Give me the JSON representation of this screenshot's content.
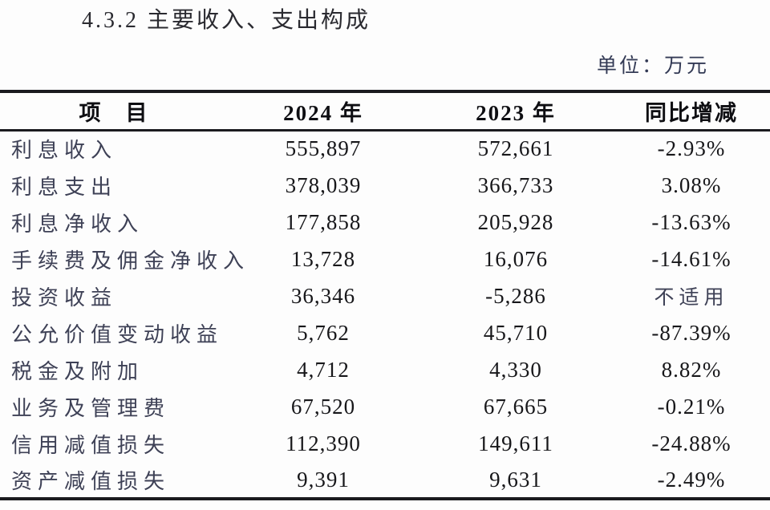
{
  "page": {
    "section_title": "4.3.2 主要收入、支出构成",
    "unit_label": "单位：万元"
  },
  "table": {
    "columns": [
      "项　目",
      "2024 年",
      "2023 年",
      "同比增减"
    ],
    "rows": [
      {
        "item": "利息收入",
        "y2024": "555,897",
        "y2023": "572,661",
        "change": "-2.93%"
      },
      {
        "item": "利息支出",
        "y2024": "378,039",
        "y2023": "366,733",
        "change": "3.08%"
      },
      {
        "item": "利息净收入",
        "y2024": "177,858",
        "y2023": "205,928",
        "change": "-13.63%"
      },
      {
        "item": "手续费及佣金净收入",
        "y2024": "13,728",
        "y2023": "16,076",
        "change": "-14.61%"
      },
      {
        "item": "投资收益",
        "y2024": "36,346",
        "y2023": "-5,286",
        "change": "不适用"
      },
      {
        "item": "公允价值变动收益",
        "y2024": "5,762",
        "y2023": "45,710",
        "change": "-87.39%"
      },
      {
        "item": "税金及附加",
        "y2024": "4,712",
        "y2023": "4,330",
        "change": "8.82%"
      },
      {
        "item": "业务及管理费",
        "y2024": "67,520",
        "y2023": "67,665",
        "change": "-0.21%"
      },
      {
        "item": "信用减值损失",
        "y2024": "112,390",
        "y2023": "149,611",
        "change": "-24.88%"
      },
      {
        "item": "资产减值损失",
        "y2024": "9,391",
        "y2023": "9,631",
        "change": "-2.49%"
      }
    ]
  },
  "colors": {
    "background": "#fdfdfd",
    "title_text": "#2a2a30",
    "unit_text": "#333a55",
    "header_text": "#0e0e12",
    "row_label_text": "#3e4156",
    "number_text": "#17171a",
    "table_border": "#1b1b1f"
  }
}
